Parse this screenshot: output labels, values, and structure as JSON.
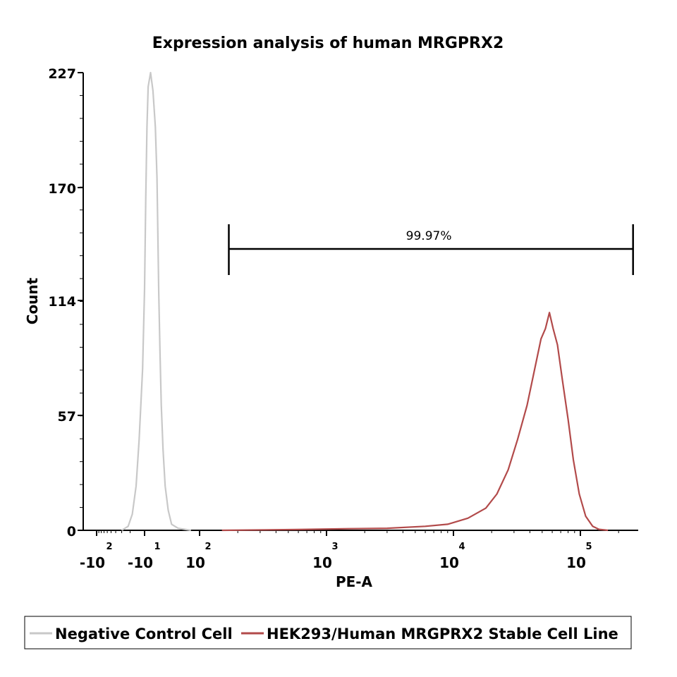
{
  "chart_data": {
    "type": "line",
    "title": "Expression analysis of human MRGPRX2",
    "xlabel": "PE-A",
    "ylabel": "Count",
    "x_scale": "biexponential",
    "ylim": [
      0,
      227
    ],
    "y_ticks": [
      {
        "value": 0,
        "label": "0"
      },
      {
        "value": 57,
        "label": "57"
      },
      {
        "value": 114,
        "label": "114"
      },
      {
        "value": 170,
        "label": "170"
      },
      {
        "value": 227,
        "label": "227"
      }
    ],
    "x_ticks": [
      {
        "value": -100,
        "base": "-10",
        "exp": "2"
      },
      {
        "value": -10,
        "base": "-10",
        "exp": "1"
      },
      {
        "value": 100,
        "base": "10",
        "exp": "2"
      },
      {
        "value": 1000,
        "base": "10",
        "exp": "3"
      },
      {
        "value": 10000,
        "base": "10",
        "exp": "4"
      },
      {
        "value": 100000,
        "base": "10",
        "exp": "5"
      }
    ],
    "gate": {
      "label": "99.97%",
      "x_start": 170,
      "x_end": 260000
    },
    "series": [
      {
        "name": "Negative Control Cell",
        "color": "#c8c8c8",
        "points": [
          [
            -30,
            0
          ],
          [
            -22,
            2
          ],
          [
            -18,
            8
          ],
          [
            -15,
            22
          ],
          [
            -13,
            45
          ],
          [
            -11,
            80
          ],
          [
            -10,
            120
          ],
          [
            -9,
            165
          ],
          [
            -8,
            200
          ],
          [
            -7,
            220
          ],
          [
            -5,
            227
          ],
          [
            -3,
            218
          ],
          [
            -1,
            200
          ],
          [
            1,
            175
          ],
          [
            3,
            148
          ],
          [
            5,
            118
          ],
          [
            8,
            88
          ],
          [
            11,
            62
          ],
          [
            15,
            40
          ],
          [
            20,
            22
          ],
          [
            27,
            10
          ],
          [
            35,
            3
          ],
          [
            50,
            1
          ],
          [
            80,
            0
          ]
        ]
      },
      {
        "name": "HEK293/Human MRGPRX2 Stable Cell Line",
        "color": "#b24a4a",
        "points": [
          [
            150,
            0
          ],
          [
            600,
            0.4
          ],
          [
            1500,
            0.8
          ],
          [
            3000,
            1
          ],
          [
            6000,
            2
          ],
          [
            9000,
            3
          ],
          [
            13000,
            6
          ],
          [
            18000,
            11
          ],
          [
            22000,
            18
          ],
          [
            27000,
            30
          ],
          [
            32000,
            45
          ],
          [
            38000,
            62
          ],
          [
            43000,
            78
          ],
          [
            49000,
            95
          ],
          [
            53000,
            100
          ],
          [
            57000,
            108
          ],
          [
            61000,
            100
          ],
          [
            66000,
            92
          ],
          [
            72000,
            75
          ],
          [
            80000,
            55
          ],
          [
            88000,
            35
          ],
          [
            98000,
            18
          ],
          [
            110000,
            7
          ],
          [
            125000,
            2
          ],
          [
            140000,
            0.5
          ],
          [
            165000,
            0
          ]
        ]
      }
    ],
    "legend": {
      "position": "bottom"
    }
  }
}
